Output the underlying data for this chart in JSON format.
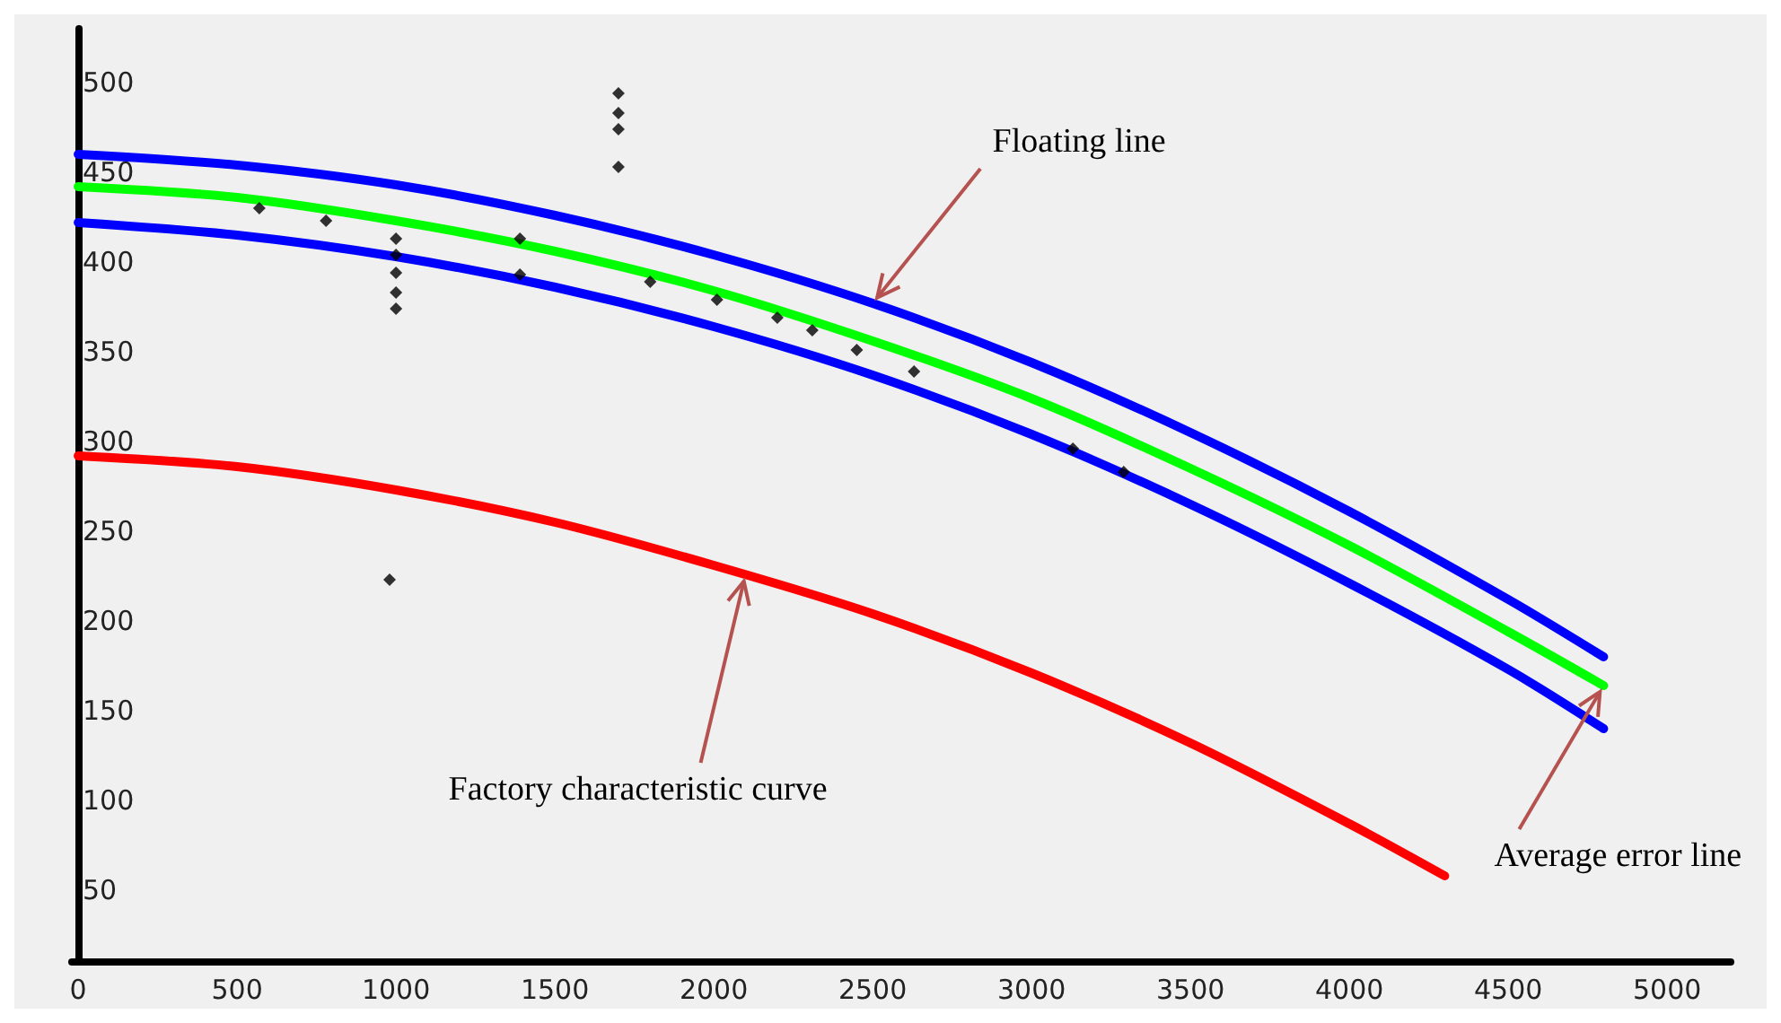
{
  "chart_data": {
    "type": "line",
    "x": [
      0,
      500,
      1000,
      1500,
      2000,
      2500,
      3000,
      3500,
      4000,
      4500,
      4800
    ],
    "series": [
      {
        "color": "#0000ff",
        "values": [
          460,
          454,
          443,
          426,
          404,
          377,
          344,
          305,
          261,
          212,
          180
        ]
      },
      {
        "color": "#00ff00",
        "values": [
          442,
          436,
          423,
          406,
          384,
          356,
          324,
          285,
          242,
          194,
          164
        ]
      },
      {
        "color": "#0000ff",
        "values": [
          422,
          415,
          403,
          386,
          364,
          337,
          304,
          265,
          221,
          173,
          140
        ]
      },
      {
        "color": "#ff0000",
        "x": [
          0,
          500,
          1000,
          1500,
          2000,
          2500,
          3000,
          3500,
          4000,
          4300
        ],
        "values": [
          292,
          286,
          273,
          255,
          231,
          204,
          171,
          132,
          87,
          58
        ]
      },
      {
        "type": "scatter",
        "marker": "diamond",
        "color": "#000000",
        "x": [
          570,
          780,
          1000,
          1000,
          1000,
          1000,
          1000,
          980,
          1390,
          1390,
          1700,
          1700,
          1700,
          1700,
          1800,
          2010,
          2200,
          2310,
          2450,
          2630,
          3130,
          3290
        ],
        "values": [
          430,
          423,
          413,
          404,
          394,
          383,
          374,
          223,
          413,
          393,
          494,
          483,
          474,
          453,
          389,
          379,
          369,
          362,
          351,
          339,
          296,
          283
        ]
      }
    ],
    "annotations": [
      {
        "text": "Floating line",
        "x": 2500,
        "y": 377
      },
      {
        "text": "Factory characteristic curve",
        "x": 2100,
        "y": 226
      },
      {
        "text": "Average error line",
        "x": 4800,
        "y": 164
      }
    ],
    "xlim": [
      -20,
      5200
    ],
    "ylim": [
      10,
      530
    ],
    "xticks": [
      0,
      500,
      1000,
      1500,
      2000,
      2500,
      3000,
      3500,
      4000,
      4500,
      5000
    ],
    "yticks": [
      50,
      100,
      150,
      200,
      250,
      300,
      350,
      400,
      450,
      500
    ],
    "marker": "none",
    "line_style": "solid"
  }
}
